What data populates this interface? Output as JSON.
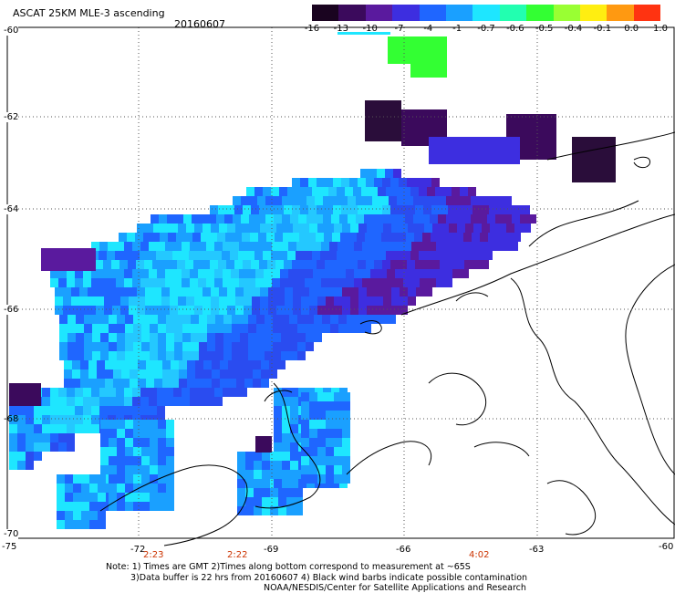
{
  "header": {
    "title": "ASCAT 25KM MLE-3 ascending",
    "date": "20160607"
  },
  "colorbar": {
    "labels": [
      "-16",
      "-13",
      "-10",
      "-7",
      "-4",
      "-1",
      "-0.7",
      "-0.6",
      "-0.5",
      "-0.4",
      "-0.1",
      "0.0",
      "1.0"
    ],
    "colors": [
      "#1a0420",
      "#3b0a5c",
      "#5a1a9e",
      "#3d2ee0",
      "#1f66ff",
      "#1aa0ff",
      "#1ee6ff",
      "#22ffb0",
      "#33ff33",
      "#99ff33",
      "#ffee11",
      "#ff9911",
      "#ff3311"
    ]
  },
  "axes": {
    "lon_labels": [
      "-75",
      "-72",
      "-69",
      "-66",
      "-63",
      "-60"
    ],
    "lat_labels": [
      "-60",
      "-62",
      "-64",
      "-66",
      "-68",
      "-70"
    ]
  },
  "pass_times": [
    "2:23",
    "2:22",
    "4:02"
  ],
  "notes": {
    "line1": "Note: 1) Times are GMT 2)Times along bottom correspond to measurement at ~65S",
    "line2": "3)Data buffer is 22 hrs from 20160607 4) Black wind barbs indicate possible contamination",
    "line3": "NOAA/NESDIS/Center for Satellite Applications and Research"
  },
  "colors": {
    "grid": "#555555",
    "coast": "#000000",
    "time_label": "#cc3300"
  }
}
